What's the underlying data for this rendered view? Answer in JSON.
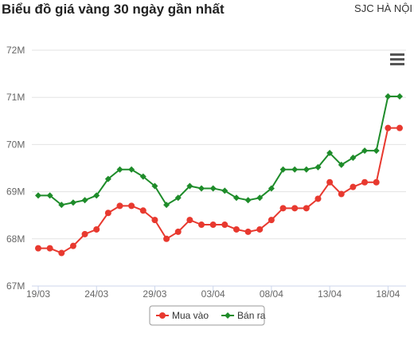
{
  "chart_data": {
    "type": "line",
    "title": "Biểu đồ giá vàng 30 ngày gần nhất",
    "subtitle": "SJC HÀ NỘI",
    "categories": [
      "19/03",
      null,
      null,
      null,
      null,
      "24/03",
      null,
      null,
      null,
      null,
      "29/03",
      null,
      null,
      null,
      null,
      "03/04",
      null,
      null,
      null,
      null,
      "08/04",
      null,
      null,
      null,
      null,
      "13/04",
      null,
      null,
      null,
      null,
      "18/04",
      null
    ],
    "series": [
      {
        "name": "Mua vào",
        "color": "#e8392f",
        "marker": "circle",
        "values": [
          67.8,
          67.8,
          67.7,
          67.85,
          68.1,
          68.2,
          68.55,
          68.7,
          68.7,
          68.6,
          68.4,
          68.0,
          68.15,
          68.4,
          68.3,
          68.3,
          68.3,
          68.2,
          68.15,
          68.2,
          68.4,
          68.65,
          68.65,
          68.65,
          68.85,
          69.2,
          68.95,
          69.1,
          69.2,
          69.2,
          70.35,
          70.35
        ]
      },
      {
        "name": "Bán ra",
        "color": "#1e8c2a",
        "marker": "diamond",
        "values": [
          68.92,
          68.92,
          68.72,
          68.77,
          68.82,
          68.92,
          69.27,
          69.47,
          69.47,
          69.32,
          69.12,
          68.72,
          68.87,
          69.12,
          69.07,
          69.07,
          69.02,
          68.87,
          68.82,
          68.87,
          69.07,
          69.47,
          69.47,
          69.47,
          69.52,
          69.82,
          69.57,
          69.72,
          69.87,
          69.87,
          71.02,
          71.02
        ]
      }
    ],
    "ylim": [
      67,
      72
    ],
    "yticks": [
      {
        "value": 67,
        "label": "67M"
      },
      {
        "value": 68,
        "label": "68M"
      },
      {
        "value": 69,
        "label": "69M"
      },
      {
        "value": 70,
        "label": "70M"
      },
      {
        "value": 71,
        "label": "71M"
      },
      {
        "value": 72,
        "label": "72M"
      }
    ],
    "grid": true,
    "legend": "bottom"
  }
}
